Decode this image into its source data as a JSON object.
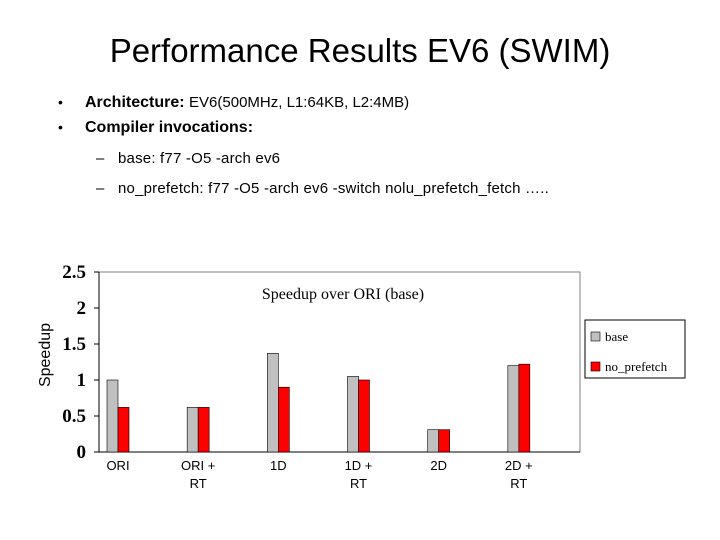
{
  "slide": {
    "title": "Performance Results EV6 (SWIM)",
    "bullets": [
      {
        "label": "Architecture:",
        "detail": "EV6(500MHz, L1:64KB, L2:4MB)"
      },
      {
        "label": "Compiler invocations:",
        "detail": ""
      }
    ],
    "sub_bullets": [
      "base: f77 -O5 -arch ev6",
      "no_prefetch: f77 -O5 -arch ev6 -switch nolu_prefetch_fetch ….."
    ],
    "bullet_glyph": "•",
    "dash_glyph": "–"
  },
  "chart_data": {
    "type": "bar",
    "title": "Speedup over ORI (base)",
    "xlabel": "",
    "ylabel": "Speedup",
    "ylim": [
      0,
      2.5
    ],
    "yticks": [
      0,
      0.5,
      1,
      1.5,
      2,
      2.5
    ],
    "ytick_labels": [
      "0",
      "0.5",
      "1",
      "1.5",
      "2",
      "2.5"
    ],
    "grid": false,
    "legend_position": "right",
    "categories": [
      [
        "ORI"
      ],
      [
        "ORI +",
        "RT"
      ],
      [
        "1D"
      ],
      [
        "1D +",
        "RT"
      ],
      [
        "2D"
      ],
      [
        "2D +",
        "RT"
      ]
    ],
    "series": [
      {
        "name": "base",
        "color": "#c0c0c0",
        "values": [
          1.0,
          0.62,
          1.37,
          1.05,
          0.31,
          1.2
        ]
      },
      {
        "name": "no_prefetch",
        "color": "#ff0000",
        "values": [
          0.62,
          0.62,
          0.9,
          1.0,
          0.31,
          1.22
        ]
      }
    ]
  }
}
